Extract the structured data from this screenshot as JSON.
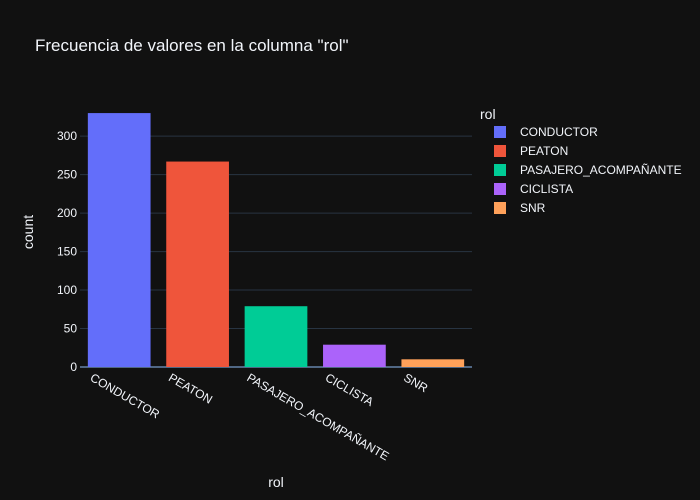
{
  "chart_data": {
    "type": "bar",
    "title": "Frecuencia de valores en la columna \"rol\"",
    "xlabel": "rol",
    "ylabel": "count",
    "categories": [
      "CONDUCTOR",
      "PEATON",
      "PASAJERO_ACOMPAÑANTE",
      "CICLISTA",
      "SNR"
    ],
    "values": [
      330,
      267,
      79,
      29,
      10
    ],
    "colors": [
      "#636efa",
      "#ef553b",
      "#00cc96",
      "#ab63fa",
      "#ffa15a"
    ],
    "yticks": [
      0,
      50,
      100,
      150,
      200,
      250,
      300
    ],
    "ylim": [
      0,
      347
    ],
    "grid": true,
    "legend": {
      "title": "rol",
      "placement": "right",
      "items": [
        "CONDUCTOR",
        "PEATON",
        "PASAJERO_ACOMPAÑANTE",
        "CICLISTA",
        "SNR"
      ]
    },
    "theme": {
      "background": "#111111",
      "grid": "#283442",
      "zeroline": "#506784",
      "text": "#f2f5fa"
    }
  }
}
